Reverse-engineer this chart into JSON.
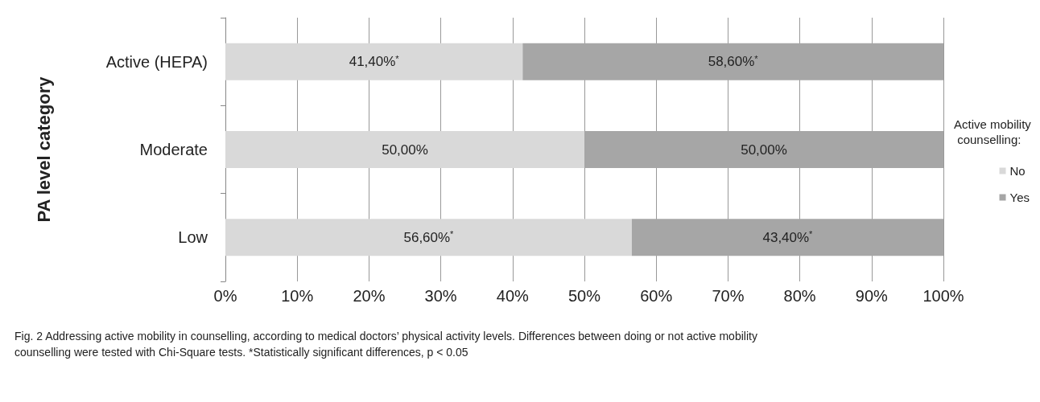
{
  "chart_data": {
    "type": "bar",
    "orientation": "horizontal",
    "stacked": true,
    "categories": [
      "Active (HEPA)",
      "Moderate",
      "Low"
    ],
    "ylabel": "PA level category",
    "legend_title": "Active mobility counselling:",
    "legend": "right",
    "grid": "x",
    "xlim": [
      0,
      100
    ],
    "xticks": [
      {
        "value": 0,
        "label": "0%"
      },
      {
        "value": 10,
        "label": "10%"
      },
      {
        "value": 20,
        "label": "20%"
      },
      {
        "value": 30,
        "label": "30%"
      },
      {
        "value": 40,
        "label": "40%"
      },
      {
        "value": 50,
        "label": "50%"
      },
      {
        "value": 60,
        "label": "60%"
      },
      {
        "value": 70,
        "label": "70%"
      },
      {
        "value": 80,
        "label": "80%"
      },
      {
        "value": 90,
        "label": "90%"
      },
      {
        "value": 100,
        "label": "100%"
      }
    ],
    "series": [
      {
        "name": "No",
        "color": "#d9d9d9",
        "values": [
          41.4,
          50,
          56.6
        ],
        "value_labels": [
          "41,40%$^{*}$",
          "50,00%",
          "56,60%$^{*}$"
        ]
      },
      {
        "name": "Yes",
        "color": "#a6a6a6",
        "values": [
          58.6,
          50,
          43.4
        ],
        "value_labels": [
          "58,60%$^{*}$",
          "50,00%",
          "43,40%$^{*}$"
        ]
      }
    ],
    "annotations": [
      "Fig. 2 Addressing active mobility in counselling, according to medical doctors’ physical activity levels. Differences between doing or not active mobility counselling were tested with Chi-Square tests. *Statistically significant differences, p < 0.05"
    ]
  }
}
